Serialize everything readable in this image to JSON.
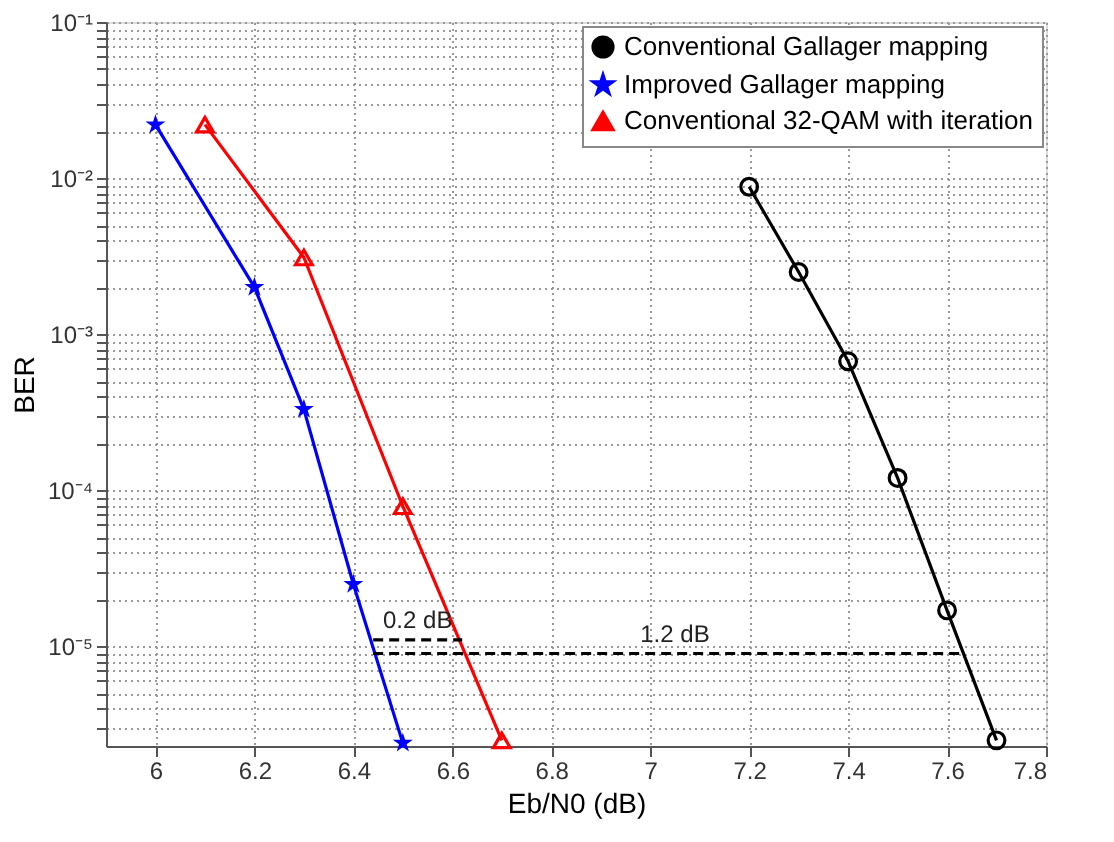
{
  "chart_data": {
    "type": "line",
    "xlabel": "Eb/N0 (dB)",
    "ylabel": "BER",
    "log": "y",
    "grid": true,
    "legend": "top right",
    "xlim": [
      5.9,
      7.8
    ],
    "xticks": [
      6,
      6.2,
      6.4,
      6.6,
      6.8,
      7,
      7.2,
      7.4,
      7.6,
      7.8
    ],
    "ylim": [
      2.3e-06,
      0.1
    ],
    "yticks": [
      {
        "value": 1e-05,
        "label": "10⁻⁵"
      },
      {
        "value": 0.0001,
        "label": "10⁻⁴"
      },
      {
        "value": 0.001,
        "label": "10⁻³"
      },
      {
        "value": 0.01,
        "label": "10⁻²"
      },
      {
        "value": 0.1,
        "label": "10⁻¹"
      },
      {
        "value": 3e-06,
        "label": null
      },
      {
        "value": 4e-06,
        "label": null
      },
      {
        "value": 5e-06,
        "label": null
      },
      {
        "value": 6e-06,
        "label": null
      },
      {
        "value": 7e-06,
        "label": null
      },
      {
        "value": 8e-06,
        "label": null
      },
      {
        "value": 9e-06,
        "label": null
      },
      {
        "value": 2e-05,
        "label": null
      },
      {
        "value": 3e-05,
        "label": null
      },
      {
        "value": 4e-05,
        "label": null
      },
      {
        "value": 5e-05,
        "label": null
      },
      {
        "value": 6e-05,
        "label": null
      },
      {
        "value": 7e-05,
        "label": null
      },
      {
        "value": 8e-05,
        "label": null
      },
      {
        "value": 9e-05,
        "label": null
      },
      {
        "value": 0.0002,
        "label": null
      },
      {
        "value": 0.0003,
        "label": null
      },
      {
        "value": 0.0004,
        "label": null
      },
      {
        "value": 0.0005,
        "label": null
      },
      {
        "value": 0.0006,
        "label": null
      },
      {
        "value": 0.0007,
        "label": null
      },
      {
        "value": 0.0008,
        "label": null
      },
      {
        "value": 0.0009,
        "label": null
      },
      {
        "value": 0.002,
        "label": null
      },
      {
        "value": 0.003,
        "label": null
      },
      {
        "value": 0.004,
        "label": null
      },
      {
        "value": 0.005,
        "label": null
      },
      {
        "value": 0.006,
        "label": null
      },
      {
        "value": 0.007,
        "label": null
      },
      {
        "value": 0.008,
        "label": null
      },
      {
        "value": 0.009,
        "label": null
      },
      {
        "value": 0.02,
        "label": null
      },
      {
        "value": 0.03,
        "label": null
      },
      {
        "value": 0.04,
        "label": null
      },
      {
        "value": 0.05,
        "label": null
      },
      {
        "value": 0.06,
        "label": null
      },
      {
        "value": 0.07,
        "label": null
      },
      {
        "value": 0.08,
        "label": null
      },
      {
        "value": 0.09,
        "label": null
      }
    ],
    "series": [
      {
        "name": "Conventional Gallager mapping",
        "color": "#000000",
        "marker": "circle",
        "x": [
          7.2,
          7.3,
          7.4,
          7.5,
          7.6,
          7.7
        ],
        "values": [
          0.0088,
          0.0025,
          0.00067,
          0.00012,
          1.7e-05,
          2.5e-06
        ]
      },
      {
        "name": "Improved Gallager mapping",
        "color": "#0000ff",
        "marker": "star",
        "x": [
          6.0,
          6.2,
          6.3,
          6.4,
          6.5
        ],
        "values": [
          0.022,
          0.002,
          0.00033,
          2.5e-05,
          2.4e-06
        ]
      },
      {
        "name": "Conventional 32-QAM with iteration",
        "color": "#ff0000",
        "marker": "triangle",
        "x": [
          6.1,
          6.3,
          6.5,
          6.7
        ],
        "values": [
          0.022,
          0.0031,
          7.9e-05,
          2.5e-06
        ]
      },
      {
        "color": "#000000",
        "marker": "none",
        "line_style": "dashed",
        "x": [
          6.44,
          6.62
        ],
        "values": [
          1.1e-05,
          1.1e-05
        ]
      },
      {
        "color": "#000000",
        "marker": "none",
        "line_style": "dashed",
        "x": [
          6.44,
          7.63
        ],
        "values": [
          9e-06,
          9e-06
        ]
      }
    ],
    "annotations": [
      {
        "text": "0.2 dB",
        "x": 6.53,
        "y": 1.1e-05
      },
      {
        "text": "1.2 dB",
        "x": 7.05,
        "y": 9e-06
      }
    ]
  }
}
